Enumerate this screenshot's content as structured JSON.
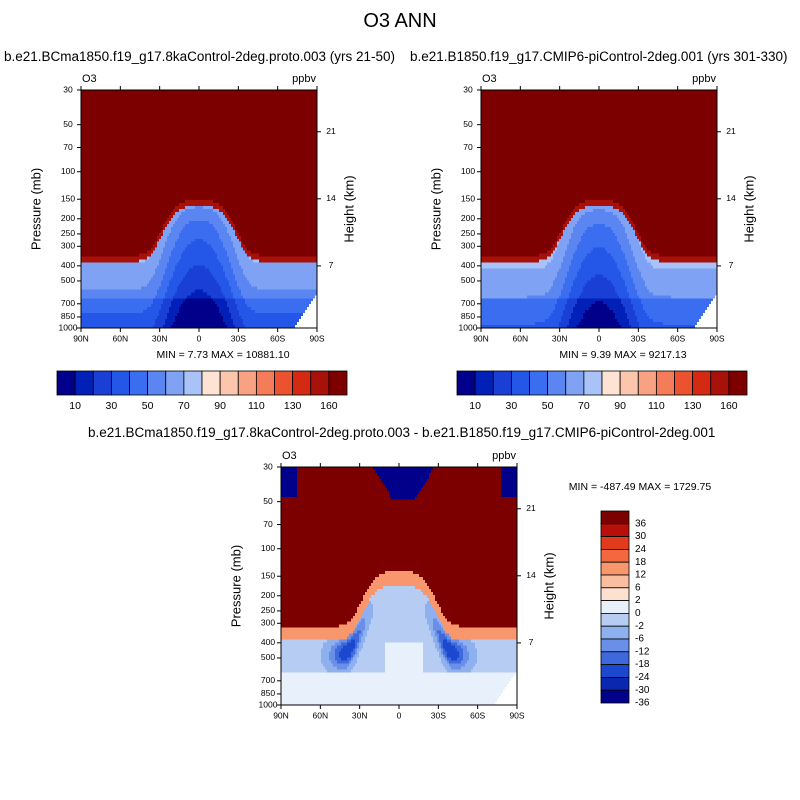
{
  "figure": {
    "title": "O3 ANN"
  },
  "chart_data": [
    {
      "type": "heatmap",
      "title": "b.e21.BCma1850.f19_g17.8kaControl-2deg.proto.003 (yrs 21-50)",
      "left_label": "O3",
      "right_label": "ppbv",
      "xlabel": "",
      "ylabel": "Pressure (mb)",
      "ylabel_right": "Height (km)",
      "x_ticks": [
        "90N",
        "60N",
        "30N",
        "0",
        "30S",
        "60S",
        "90S"
      ],
      "y_ticks": [
        30,
        50,
        70,
        100,
        150,
        200,
        250,
        300,
        400,
        500,
        700,
        850,
        1000
      ],
      "y_log": true,
      "ylim": [
        1000,
        30
      ],
      "height_ticks": [
        7,
        14,
        21
      ],
      "min_max_text": "MIN =   7.73   MAX = 10881.10",
      "colorbar_labels": [
        "10",
        "30",
        "50",
        "70",
        "90",
        "110",
        "130",
        "160"
      ],
      "contour_levels": [
        10,
        20,
        30,
        40,
        50,
        60,
        70,
        80,
        90,
        100,
        110,
        120,
        130,
        140,
        160
      ],
      "colorbar_orientation": "horizontal"
    },
    {
      "type": "heatmap",
      "title": "b.e21.B1850.f19_g17.CMIP6-piControl-2deg.001 (yrs 301-330)",
      "left_label": "O3",
      "right_label": "ppbv",
      "xlabel": "",
      "ylabel": "Pressure (mb)",
      "ylabel_right": "Height (km)",
      "x_ticks": [
        "90N",
        "60N",
        "30N",
        "0",
        "30S",
        "60S",
        "90S"
      ],
      "y_ticks": [
        30,
        50,
        70,
        100,
        150,
        200,
        250,
        300,
        400,
        500,
        700,
        850,
        1000
      ],
      "y_log": true,
      "ylim": [
        1000,
        30
      ],
      "height_ticks": [
        7,
        14,
        21
      ],
      "min_max_text": "MIN =   9.39   MAX = 9217.13",
      "colorbar_labels": [
        "10",
        "30",
        "50",
        "70",
        "90",
        "110",
        "130",
        "160"
      ],
      "contour_levels": [
        10,
        20,
        30,
        40,
        50,
        60,
        70,
        80,
        90,
        100,
        110,
        120,
        130,
        140,
        160
      ],
      "colorbar_orientation": "horizontal"
    },
    {
      "type": "heatmap",
      "title": "b.e21.BCma1850.f19_g17.8kaControl-2deg.proto.003 - b.e21.B1850.f19_g17.CMIP6-piControl-2deg.001",
      "left_label": "O3",
      "right_label": "ppbv",
      "xlabel": "",
      "ylabel": "Pressure (mb)",
      "ylabel_right": "Height (km)",
      "x_ticks": [
        "90N",
        "60N",
        "30N",
        "0",
        "30S",
        "60S",
        "90S"
      ],
      "y_ticks": [
        30,
        50,
        70,
        100,
        150,
        200,
        250,
        300,
        400,
        500,
        700,
        850,
        1000
      ],
      "y_log": true,
      "ylim": [
        1000,
        30
      ],
      "height_ticks": [
        7,
        14,
        21
      ],
      "min_max_text": "MIN = -487.49  MAX = 1729.75",
      "colorbar_labels": [
        "36",
        "30",
        "24",
        "18",
        "12",
        "6",
        "2",
        "0",
        "-2",
        "-6",
        "-12",
        "-18",
        "-24",
        "-30",
        "-36"
      ],
      "contour_levels": [
        -36,
        -30,
        -24,
        -18,
        -12,
        -6,
        -2,
        0,
        2,
        6,
        12,
        18,
        24,
        30,
        36
      ],
      "colorbar_orientation": "vertical"
    }
  ],
  "colors": {
    "abs_palette": [
      "#00008b",
      "#0020b8",
      "#1a3fd6",
      "#2456e8",
      "#3a6df0",
      "#5b86f2",
      "#7fa2f4",
      "#a9c3f8",
      "#fde3d3",
      "#fbc6ac",
      "#f8a283",
      "#f47c58",
      "#eb5330",
      "#d42a14",
      "#a8100a",
      "#7d0000"
    ],
    "diff_palette": [
      "#7d0000",
      "#b80f0a",
      "#e23a1c",
      "#f4683f",
      "#f8976e",
      "#fbbd9f",
      "#fde0cf",
      "#e8f0fb",
      "#b6ccf3",
      "#8fb0ee",
      "#6a8fe8",
      "#3d69dd",
      "#1c48d0",
      "#0828b0",
      "#00008b"
    ]
  }
}
